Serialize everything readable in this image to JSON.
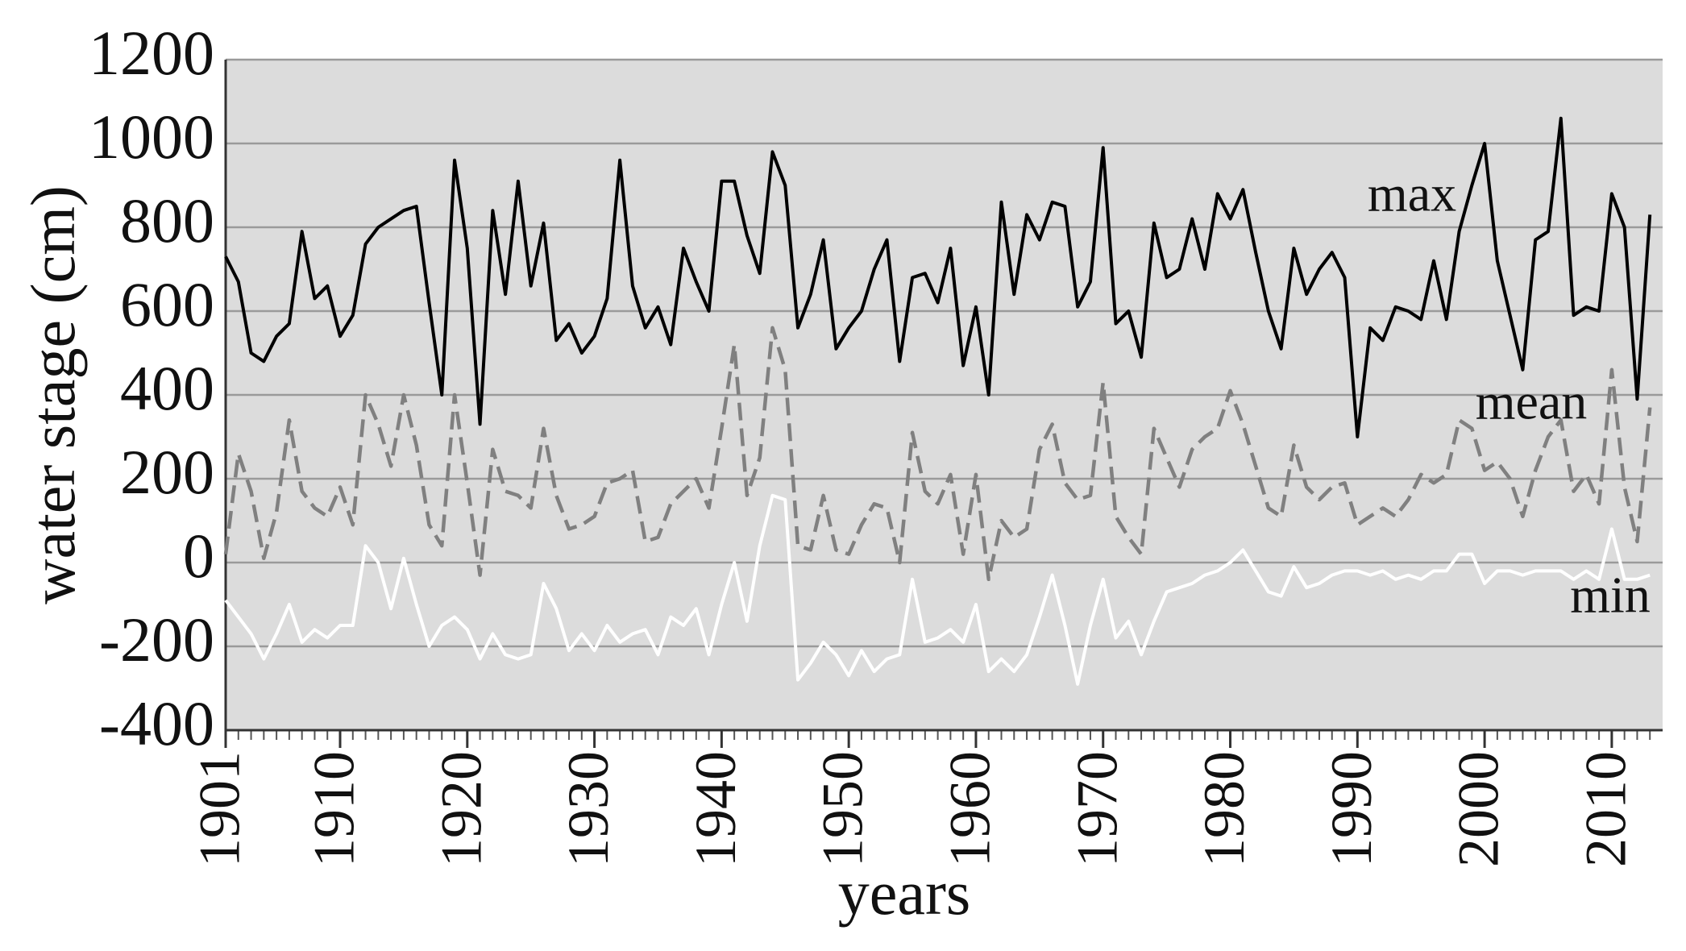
{
  "chart_data": {
    "type": "line",
    "x_label": "years",
    "y_label": "water stage (cm)",
    "x": [
      1901,
      1902,
      1903,
      1904,
      1905,
      1906,
      1907,
      1908,
      1909,
      1910,
      1911,
      1912,
      1913,
      1914,
      1915,
      1916,
      1917,
      1918,
      1919,
      1920,
      1921,
      1922,
      1923,
      1924,
      1925,
      1926,
      1927,
      1928,
      1929,
      1930,
      1931,
      1932,
      1933,
      1934,
      1935,
      1936,
      1937,
      1938,
      1939,
      1940,
      1941,
      1942,
      1943,
      1944,
      1945,
      1946,
      1947,
      1948,
      1949,
      1950,
      1951,
      1952,
      1953,
      1954,
      1955,
      1956,
      1957,
      1958,
      1959,
      1960,
      1961,
      1962,
      1963,
      1964,
      1965,
      1966,
      1967,
      1968,
      1969,
      1970,
      1971,
      1972,
      1973,
      1974,
      1975,
      1976,
      1977,
      1978,
      1979,
      1980,
      1981,
      1982,
      1983,
      1984,
      1985,
      1986,
      1987,
      1988,
      1989,
      1990,
      1991,
      1992,
      1993,
      1994,
      1995,
      1996,
      1997,
      1998,
      1999,
      2000,
      2001,
      2002,
      2003,
      2004,
      2005,
      2006,
      2007,
      2008,
      2009,
      2010,
      2011,
      2012,
      2013
    ],
    "series": [
      {
        "name": "max",
        "color": "#000000",
        "dash": "solid",
        "values": [
          730,
          670,
          500,
          480,
          540,
          570,
          790,
          630,
          660,
          540,
          590,
          760,
          800,
          820,
          840,
          850,
          620,
          400,
          960,
          750,
          330,
          840,
          640,
          910,
          660,
          810,
          530,
          570,
          500,
          540,
          630,
          960,
          660,
          560,
          610,
          520,
          750,
          670,
          600,
          910,
          910,
          780,
          690,
          980,
          900,
          560,
          640,
          770,
          510,
          560,
          600,
          700,
          770,
          480,
          680,
          690,
          620,
          750,
          470,
          610,
          400,
          860,
          640,
          830,
          770,
          860,
          850,
          610,
          670,
          990,
          570,
          600,
          490,
          810,
          680,
          700,
          820,
          700,
          880,
          820,
          890,
          740,
          600,
          510,
          750,
          640,
          700,
          740,
          680,
          300,
          560,
          530,
          610,
          600,
          580,
          720,
          580,
          790,
          900,
          1000,
          720,
          590,
          460,
          770,
          790,
          1060,
          590,
          610,
          600,
          880,
          800,
          390,
          830
        ]
      },
      {
        "name": "mean",
        "color": "#808080",
        "dash": "dashed",
        "values": [
          20,
          260,
          170,
          10,
          120,
          340,
          170,
          130,
          110,
          180,
          90,
          400,
          330,
          230,
          400,
          280,
          90,
          40,
          400,
          190,
          -30,
          270,
          170,
          160,
          130,
          320,
          160,
          80,
          90,
          110,
          190,
          200,
          220,
          50,
          60,
          140,
          170,
          200,
          130,
          320,
          520,
          160,
          250,
          560,
          460,
          40,
          30,
          160,
          30,
          20,
          90,
          140,
          130,
          0,
          310,
          170,
          140,
          210,
          20,
          210,
          -40,
          100,
          60,
          80,
          270,
          330,
          190,
          150,
          160,
          430,
          110,
          60,
          20,
          320,
          250,
          180,
          270,
          300,
          320,
          410,
          330,
          230,
          130,
          110,
          280,
          180,
          150,
          180,
          190,
          90,
          110,
          130,
          110,
          150,
          210,
          190,
          210,
          340,
          320,
          220,
          240,
          200,
          110,
          220,
          300,
          340,
          170,
          210,
          140,
          460,
          180,
          50,
          370
        ]
      },
      {
        "name": "min",
        "color": "#ffffff",
        "dash": "solid",
        "values": [
          -90,
          -130,
          -170,
          -230,
          -170,
          -100,
          -190,
          -160,
          -180,
          -150,
          -150,
          40,
          0,
          -110,
          10,
          -100,
          -200,
          -150,
          -130,
          -160,
          -230,
          -170,
          -220,
          -230,
          -220,
          -50,
          -110,
          -210,
          -170,
          -210,
          -150,
          -190,
          -170,
          -160,
          -220,
          -130,
          -150,
          -110,
          -220,
          -100,
          0,
          -140,
          40,
          160,
          150,
          -280,
          -240,
          -190,
          -220,
          -270,
          -210,
          -260,
          -230,
          -220,
          -40,
          -190,
          -180,
          -160,
          -190,
          -100,
          -260,
          -230,
          -260,
          -220,
          -130,
          -30,
          -150,
          -290,
          -150,
          -40,
          -180,
          -140,
          -220,
          -140,
          -70,
          -60,
          -50,
          -30,
          -20,
          0,
          30,
          -20,
          -70,
          -80,
          -10,
          -60,
          -50,
          -30,
          -20,
          -20,
          -30,
          -20,
          -40,
          -30,
          -40,
          -20,
          -20,
          20,
          20,
          -50,
          -20,
          -20,
          -30,
          -20,
          -20,
          -20,
          -40,
          -20,
          -40,
          80,
          -40,
          -40,
          -30
        ]
      }
    ],
    "xlim": [
      1901,
      2014
    ],
    "xticks": [
      1901,
      1910,
      1920,
      1930,
      1940,
      1950,
      1960,
      1970,
      1980,
      1990,
      2000,
      2010
    ],
    "ylim": [
      -400,
      1200
    ],
    "yticks": [
      -400,
      -200,
      0,
      200,
      400,
      600,
      800,
      1000,
      1200
    ],
    "grid": true,
    "plot_background": "#dcdcdc"
  }
}
